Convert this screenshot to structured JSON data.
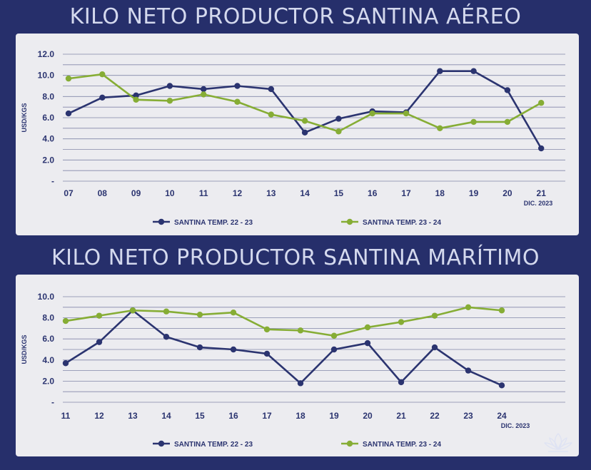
{
  "colors": {
    "background": "#262f6b",
    "panel": "#ececf0",
    "navy": "#2b3470",
    "green": "#86ad35",
    "grid": "#2b3470",
    "title": "#d4d9ee"
  },
  "logo": "lotus-icon",
  "chart_data": [
    {
      "type": "line",
      "title": "KILO NETO PRODUCTOR SANTINA AÉREO",
      "ylabel": "USD/KGS",
      "note": "DIC. 2023",
      "ylim": [
        0,
        12
      ],
      "yticks": [
        "-",
        "2.0",
        "4.0",
        "6.0",
        "8.0",
        "10.0",
        "12.0"
      ],
      "ytick_values": [
        0,
        2,
        4,
        6,
        8,
        10,
        12
      ],
      "grid": "horizontal",
      "legend_position": "bottom",
      "categories": [
        "07",
        "08",
        "09",
        "10",
        "11",
        "12",
        "13",
        "14",
        "15",
        "16",
        "17",
        "18",
        "19",
        "20",
        "21"
      ],
      "series": [
        {
          "name": "SANTINA TEMP. 22 - 23",
          "color": "#2b3470",
          "values": [
            6.4,
            7.9,
            8.1,
            9.0,
            8.7,
            9.0,
            8.7,
            4.6,
            5.9,
            6.6,
            6.5,
            10.4,
            10.4,
            8.6,
            3.1
          ]
        },
        {
          "name": "SANTINA TEMP. 23 - 24",
          "color": "#86ad35",
          "values": [
            9.7,
            10.1,
            7.7,
            7.6,
            8.2,
            7.5,
            6.3,
            5.7,
            4.7,
            6.4,
            6.4,
            5.0,
            5.6,
            5.6,
            7.4
          ]
        }
      ]
    },
    {
      "type": "line",
      "title": "KILO NETO PRODUCTOR SANTINA MARÍTIMO",
      "ylabel": "USD/KGS",
      "note": "DIC. 2023",
      "ylim": [
        0,
        10
      ],
      "yticks": [
        "-",
        "2.0",
        "4.0",
        "6.0",
        "8.0",
        "10.0"
      ],
      "ytick_values": [
        0,
        2,
        4,
        6,
        8,
        10
      ],
      "grid": "horizontal",
      "legend_position": "bottom",
      "categories": [
        "11",
        "12",
        "13",
        "14",
        "15",
        "16",
        "17",
        "18",
        "19",
        "20",
        "21",
        "22",
        "23",
        "24"
      ],
      "series": [
        {
          "name": "SANTINA TEMP. 22 - 23",
          "color": "#2b3470",
          "values": [
            3.7,
            5.7,
            8.7,
            6.2,
            5.2,
            5.0,
            4.6,
            1.8,
            5.0,
            5.6,
            1.9,
            5.2,
            3.0,
            1.6
          ]
        },
        {
          "name": "SANTINA TEMP. 23 - 24",
          "color": "#86ad35",
          "values": [
            7.7,
            8.2,
            8.7,
            8.6,
            8.3,
            8.5,
            6.9,
            6.8,
            6.3,
            7.1,
            7.6,
            8.2,
            9.0,
            8.7
          ]
        }
      ]
    }
  ]
}
